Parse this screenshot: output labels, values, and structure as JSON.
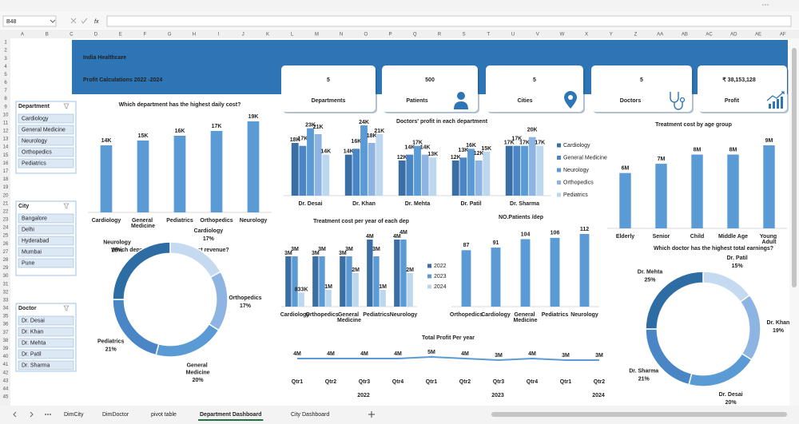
{
  "excel": {
    "name_box": "B48",
    "fx": "fx",
    "columns": [
      "A",
      "B",
      "C",
      "D",
      "E",
      "F",
      "G",
      "H",
      "I",
      "J",
      "K",
      "L",
      "M",
      "N",
      "O",
      "P",
      "Q",
      "R",
      "S",
      "T",
      "U",
      "V",
      "W",
      "X",
      "Y",
      "Z",
      "AA",
      "AB",
      "AC",
      "AD",
      "AE",
      "AF"
    ],
    "rows": [
      "1",
      "2",
      "3",
      "4",
      "5",
      "6",
      "7",
      "8",
      "9",
      "10",
      "11",
      "12",
      "13",
      "14",
      "15",
      "16",
      "17",
      "18",
      "19",
      "20",
      "21",
      "22",
      "23",
      "24",
      "25",
      "26",
      "27",
      "28",
      "29",
      "30",
      "31",
      "32",
      "33",
      "34",
      "35",
      "36",
      "37",
      "38",
      "39",
      "40",
      "41",
      "42",
      "43",
      "44",
      "45"
    ],
    "sheet_tabs": [
      "DimCity",
      "DimDoctor",
      "pivot table",
      "Department Dashboard",
      "City Dashboard"
    ],
    "active_tab": 3
  },
  "header": {
    "title": "India Healthcare",
    "subtitle": "Profit Calculations 2022 -2024"
  },
  "kpis": [
    {
      "value": "5",
      "label": "Departments"
    },
    {
      "value": "500",
      "label": "Patients"
    },
    {
      "value": "5",
      "label": "Cities"
    },
    {
      "value": "5",
      "label": "Doctors"
    },
    {
      "value": "₹ 38,153,128",
      "label": "Profit"
    }
  ],
  "slicers": [
    {
      "title": "Department",
      "items": [
        "Cardiology",
        "General Medicine",
        "Neurology",
        "Orthopedics",
        "Pediatrics"
      ]
    },
    {
      "title": "City",
      "items": [
        "Bangalore",
        "Delhi",
        "Hyderabad",
        "Mumbai",
        "Pune"
      ]
    },
    {
      "title": "Doctor",
      "items": [
        "Dr. Desai",
        "Dr. Khan",
        "Dr. Mehta",
        "Dr. Patil",
        "Dr. Sharma"
      ]
    }
  ],
  "chart_data": [
    {
      "type": "bar",
      "title": "Which department has the highest daily cost?",
      "categories": [
        "Cardiology",
        "General Medicine",
        "Pediatrics",
        "Orthopedics",
        "Neurology"
      ],
      "values": [
        14000,
        15000,
        16000,
        17000,
        19000
      ],
      "value_labels": [
        "14K",
        "15K",
        "16K",
        "17K",
        "19K"
      ],
      "color": "#5b9bd5"
    },
    {
      "type": "grouped_bar",
      "title": "Doctors' profit in each department",
      "legend": "right",
      "categories": [
        "Dr. Desai",
        "Dr. Khan",
        "Dr. Mehta",
        "Dr. Patil",
        "Dr. Sharma"
      ],
      "series": [
        {
          "name": "Cardiology",
          "color": "#3a6fa5",
          "values": [
            18000,
            14000,
            12000,
            12000,
            17000
          ],
          "value_labels": [
            "18K",
            "14K",
            "12K",
            "12K",
            "17K"
          ]
        },
        {
          "name": "General Medicine",
          "color": "#4a86c5",
          "values": [
            17000,
            16000,
            14000,
            13000,
            17000
          ],
          "value_labels": [
            "17K",
            "16K",
            "14K",
            "13K",
            "17K"
          ]
        },
        {
          "name": "Neurology",
          "color": "#5b9bd5",
          "values": [
            23000,
            24000,
            17000,
            16000,
            17000
          ],
          "value_labels": [
            "23K",
            "24K",
            "17K",
            "16K",
            "17K"
          ]
        },
        {
          "name": "Orthopedics",
          "color": "#8db4e2",
          "values": [
            21000,
            18000,
            14000,
            12000,
            20000
          ],
          "value_labels": [
            "21K",
            "18K",
            "14K",
            "12K",
            "20K"
          ]
        },
        {
          "name": "Pediatrics",
          "color": "#bdd7ee",
          "values": [
            14000,
            21000,
            13000,
            15000,
            17000
          ],
          "value_labels": [
            "14K",
            "21K",
            "13K",
            "15K",
            "17K"
          ]
        }
      ]
    },
    {
      "type": "bar",
      "title": "Treatment cost by  age group",
      "categories": [
        "Elderly",
        "Senior",
        "Child",
        "Middle Age",
        "Young Adult"
      ],
      "values": [
        6000000,
        7000000,
        8000000,
        8000000,
        9000000
      ],
      "value_labels": [
        "6M",
        "7M",
        "8M",
        "8M",
        "9M"
      ],
      "color": "#5b9bd5"
    },
    {
      "type": "grouped_bar",
      "title": "Treatment cost per year of each dep",
      "legend": "right",
      "categories": [
        "Cardiology",
        "Orthopedics",
        "General Medicine",
        "Pediatrics",
        "Neurology"
      ],
      "series": [
        {
          "name": "2022",
          "color": "#3a6fa5",
          "values": [
            3000000,
            3000000,
            3000000,
            4000000,
            4000000
          ],
          "value_labels": [
            "3M",
            "3M",
            "3M",
            "4M",
            "4M"
          ]
        },
        {
          "name": "2023",
          "color": "#5b9bd5",
          "values": [
            3000000,
            3000000,
            3000000,
            3000000,
            4000000
          ],
          "value_labels": [
            "3M",
            "3M",
            "3M",
            "3M",
            "4M"
          ]
        },
        {
          "name": "2024",
          "color": "#bdd7ee",
          "values": [
            833000,
            1000000,
            2000000,
            1000000,
            2000000
          ],
          "value_labels": [
            "833K",
            "1M",
            "2M",
            "1M",
            "2M"
          ]
        }
      ]
    },
    {
      "type": "bar",
      "title": "NO.Patients /dep",
      "categories": [
        "Orthopedics",
        "Cardiology",
        "General Medicine",
        "Pediatrics",
        "Neurology"
      ],
      "values": [
        87,
        91,
        104,
        106,
        112
      ],
      "color": "#5b9bd5"
    },
    {
      "type": "donut",
      "title": "Which department has the highest revenue?",
      "categories": [
        "Cardiology",
        "Orthopedics",
        "General Medicine",
        "Pediatrics",
        "Neurology"
      ],
      "values": [
        17,
        17,
        20,
        21,
        25
      ],
      "value_labels": [
        "17%",
        "17%",
        "20%",
        "21%",
        "25%"
      ],
      "colors": [
        "#c5d9f0",
        "#8db4e2",
        "#5b9bd5",
        "#4a86c5",
        "#2e6ca4"
      ]
    },
    {
      "type": "donut",
      "title": "Which doctor has the highest total earnings?",
      "categories": [
        "Dr. Patil",
        "Dr. Khan",
        "Dr. Desai",
        "Dr. Sharma",
        "Dr. Mehta"
      ],
      "values": [
        15,
        19,
        20,
        21,
        25
      ],
      "value_labels": [
        "15%",
        "19%",
        "20%",
        "21%",
        "25%"
      ],
      "colors": [
        "#c5d9f0",
        "#8db4e2",
        "#5b9bd5",
        "#4a86c5",
        "#2e6ca4"
      ]
    },
    {
      "type": "line",
      "title": "Total Profit Per year",
      "color": "#5b9bd5",
      "groups": [
        {
          "name": "2022",
          "categories": [
            "Qtr1",
            "Qtr2",
            "Qtr3",
            "Qtr4"
          ],
          "values": [
            4000000,
            4000000,
            4000000,
            4000000
          ],
          "value_labels": [
            "4M",
            "4M",
            "4M",
            "4M"
          ]
        },
        {
          "name": "2023",
          "categories": [
            "Qtr1",
            "Qtr2",
            "Qtr3",
            "Qtr4"
          ],
          "values": [
            5000000,
            4000000,
            3000000,
            4000000
          ],
          "value_labels": [
            "5M",
            "4M",
            "3M",
            "4M"
          ]
        },
        {
          "name": "2024",
          "categories": [
            "Qtr1",
            "Qtr2"
          ],
          "values": [
            3000000,
            3000000
          ],
          "value_labels": [
            "3M",
            "3M"
          ]
        }
      ]
    }
  ]
}
